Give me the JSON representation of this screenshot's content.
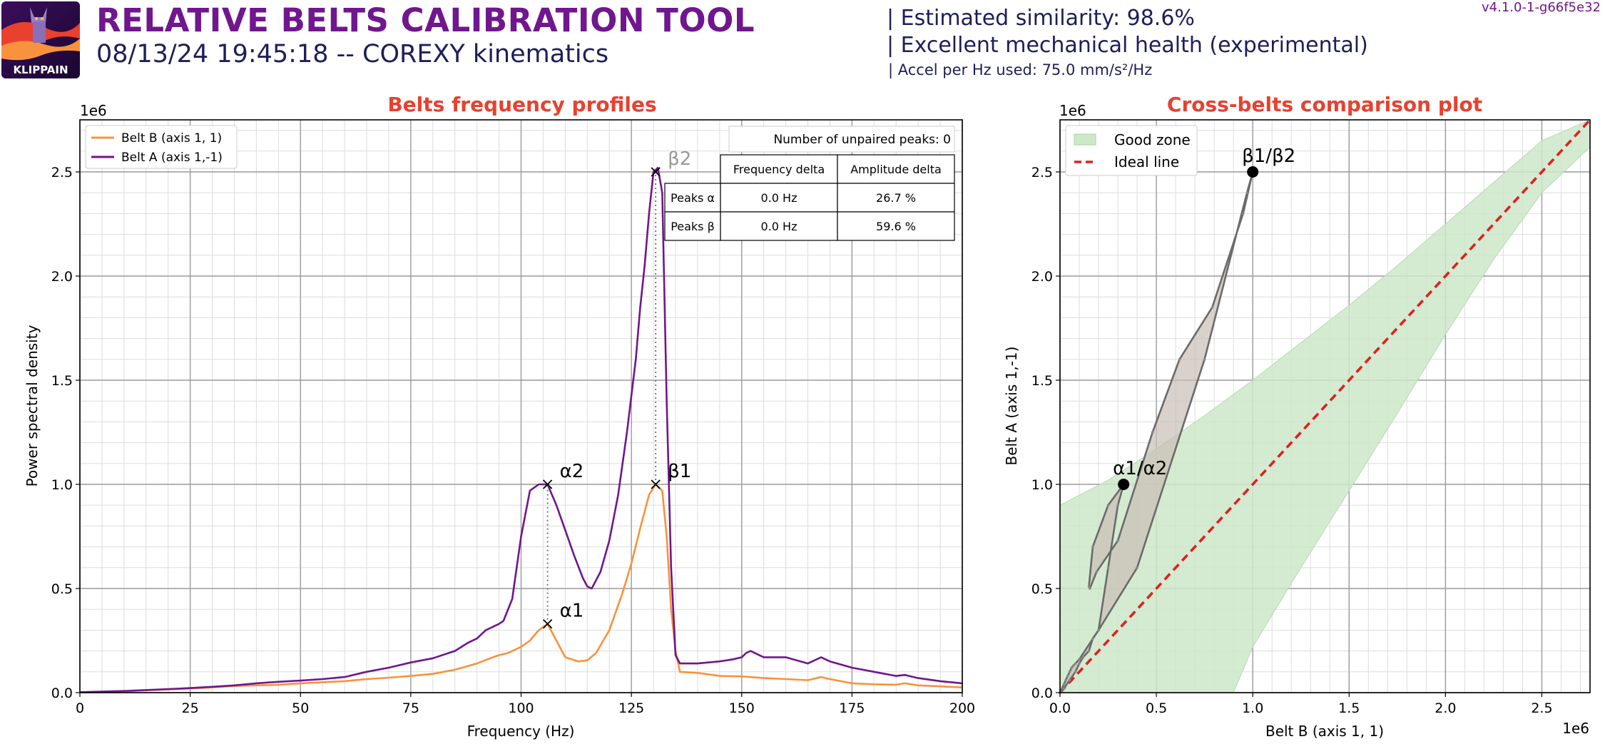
{
  "header": {
    "title": "RELATIVE BELTS CALIBRATION TOOL",
    "subtitle": "08/13/24 19:45:18 -- COREXY kinematics",
    "similarity": "| Estimated similarity: 98.6%",
    "health": "| Excellent mechanical health (experimental)",
    "accel": "| Accel per Hz used: 75.0 mm/s²/Hz",
    "version": "v4.1.0-1-g66f5e32",
    "logo_text": "KLIPPAIN"
  },
  "colors": {
    "belt_a": "#70168e",
    "belt_b": "#f8923c",
    "title_red": "#e8412e",
    "ideal_line": "#e02020",
    "good_zone": "#cce8c9",
    "comparison_line": "#6b6b6b"
  },
  "chart_data": [
    {
      "type": "line",
      "title": "Belts frequency profiles",
      "xlabel": "Frequency (Hz)",
      "ylabel": "Power spectral density",
      "y_scale_label": "1e6",
      "xlim": [
        0,
        200
      ],
      "ylim": [
        0,
        2.75
      ],
      "xticks": [
        0,
        25,
        50,
        75,
        100,
        125,
        150,
        175,
        200
      ],
      "yticks": [
        0.0,
        0.5,
        1.0,
        1.5,
        2.0,
        2.5
      ],
      "grid": true,
      "legend_position": "top-left",
      "series": [
        {
          "name": "Belt B (axis 1, 1)",
          "color": "#f8923c",
          "x": [
            0,
            10,
            20,
            25,
            30,
            35,
            40,
            45,
            50,
            55,
            60,
            65,
            70,
            75,
            80,
            85,
            90,
            93,
            95,
            97,
            100,
            102,
            104,
            106,
            108,
            110,
            113,
            115,
            117,
            120,
            123,
            125,
            127,
            129,
            130.5,
            132,
            133,
            134,
            135,
            136,
            140,
            145,
            150,
            155,
            160,
            165,
            168,
            170,
            175,
            180,
            185,
            187,
            190,
            195,
            200
          ],
          "y": [
            0.002,
            0.006,
            0.015,
            0.02,
            0.025,
            0.032,
            0.035,
            0.038,
            0.045,
            0.05,
            0.055,
            0.065,
            0.072,
            0.08,
            0.09,
            0.11,
            0.14,
            0.165,
            0.18,
            0.19,
            0.22,
            0.25,
            0.3,
            0.33,
            0.25,
            0.17,
            0.15,
            0.155,
            0.19,
            0.3,
            0.48,
            0.62,
            0.79,
            0.95,
            1.0,
            0.97,
            0.75,
            0.4,
            0.2,
            0.1,
            0.095,
            0.08,
            0.078,
            0.07,
            0.065,
            0.06,
            0.075,
            0.065,
            0.045,
            0.04,
            0.038,
            0.045,
            0.035,
            0.03,
            0.025
          ]
        },
        {
          "name": "Belt A (axis 1,-1)",
          "color": "#70168e",
          "x": [
            0,
            10,
            20,
            25,
            30,
            35,
            40,
            45,
            50,
            55,
            60,
            65,
            70,
            75,
            80,
            85,
            88,
            90,
            92,
            93,
            94,
            95,
            96,
            98,
            100,
            102,
            104,
            106,
            107,
            108,
            110,
            112,
            114,
            115,
            116,
            118,
            120,
            122,
            124,
            126,
            127,
            128,
            129,
            130,
            131,
            132,
            133,
            134,
            135,
            136,
            140,
            145,
            148,
            150,
            151,
            152,
            155,
            160,
            165,
            168,
            170,
            175,
            180,
            185,
            187,
            190,
            195,
            200
          ],
          "y": [
            0.002,
            0.008,
            0.017,
            0.022,
            0.028,
            0.035,
            0.045,
            0.052,
            0.058,
            0.065,
            0.075,
            0.1,
            0.12,
            0.145,
            0.165,
            0.2,
            0.24,
            0.26,
            0.3,
            0.31,
            0.32,
            0.33,
            0.345,
            0.45,
            0.75,
            0.97,
            1.0,
            1.0,
            0.95,
            0.9,
            0.78,
            0.66,
            0.55,
            0.51,
            0.5,
            0.58,
            0.73,
            0.95,
            1.25,
            1.6,
            1.85,
            2.05,
            2.3,
            2.5,
            2.52,
            2.4,
            1.4,
            0.6,
            0.18,
            0.14,
            0.14,
            0.15,
            0.16,
            0.17,
            0.19,
            0.2,
            0.17,
            0.17,
            0.14,
            0.17,
            0.15,
            0.12,
            0.1,
            0.08,
            0.085,
            0.07,
            0.055,
            0.045
          ]
        }
      ],
      "peaks": [
        {
          "label": "α1",
          "x": 106.0,
          "y": 0.33,
          "color": "#000000"
        },
        {
          "label": "α2",
          "x": 106.0,
          "y": 1.0,
          "color": "#000000"
        },
        {
          "label": "β1",
          "x": 130.5,
          "y": 1.0,
          "color": "#000000"
        },
        {
          "label": "β2",
          "x": 130.5,
          "y": 2.5,
          "color": "#999999"
        }
      ],
      "table": {
        "title": "Number of unpaired peaks: 0",
        "columns": [
          "",
          "Frequency delta",
          "Amplitude delta"
        ],
        "rows": [
          [
            "Peaks α",
            "0.0 Hz",
            "26.7 %"
          ],
          [
            "Peaks β",
            "0.0 Hz",
            "59.6 %"
          ]
        ]
      }
    },
    {
      "type": "line",
      "title": "Cross-belts comparison plot",
      "xlabel": "Belt B (axis 1, 1)",
      "ylabel": "Belt A (axis 1,-1)",
      "x_scale_label": "1e6",
      "y_scale_label": "1e6",
      "xlim": [
        0,
        2.75
      ],
      "ylim": [
        0,
        2.75
      ],
      "xticks": [
        0.0,
        0.5,
        1.0,
        1.5,
        2.0,
        2.5
      ],
      "yticks": [
        0.0,
        0.5,
        1.0,
        1.5,
        2.0,
        2.5
      ],
      "grid": true,
      "legend_position": "top-left",
      "legend": [
        "Good zone",
        "Ideal line"
      ],
      "good_zone": {
        "x": [
          0,
          0.25,
          0.5,
          0.75,
          1.0,
          1.25,
          1.5,
          1.75,
          2.0,
          2.25,
          2.5,
          2.75
        ],
        "upper": [
          0.9,
          1.02,
          1.17,
          1.33,
          1.5,
          1.68,
          1.86,
          2.05,
          2.25,
          2.45,
          2.65,
          2.9
        ],
        "lower": [
          0.0,
          0.0,
          0.0,
          0.0,
          0.22,
          0.6,
          0.97,
          1.34,
          1.72,
          2.08,
          2.4,
          2.62
        ],
        "lower_start_x": 0.9
      },
      "ideal_line": {
        "x": [
          0,
          2.75
        ],
        "y": [
          0,
          2.75
        ]
      },
      "comparison_curve": {
        "x": [
          0,
          0.02,
          0.05,
          0.08,
          0.1,
          0.12,
          0.15,
          0.17,
          0.2,
          0.25,
          0.3,
          0.33,
          0.25,
          0.17,
          0.15,
          0.155,
          0.19,
          0.3,
          0.48,
          0.62,
          0.79,
          0.95,
          1.0,
          0.97,
          0.75,
          0.4,
          0.2,
          0.1,
          0.08,
          0.07,
          0.06,
          0.05,
          0.04,
          0.03,
          0.02,
          0
        ],
        "y": [
          0,
          0.02,
          0.06,
          0.1,
          0.14,
          0.17,
          0.2,
          0.26,
          0.3,
          0.6,
          0.9,
          1.0,
          0.9,
          0.7,
          0.51,
          0.5,
          0.58,
          0.73,
          1.25,
          1.6,
          1.85,
          2.3,
          2.5,
          2.4,
          1.6,
          0.6,
          0.3,
          0.16,
          0.14,
          0.13,
          0.12,
          0.1,
          0.08,
          0.06,
          0.04,
          0
        ]
      },
      "points": [
        {
          "label": "α1/α2",
          "x": 0.33,
          "y": 1.0
        },
        {
          "label": "β1/β2",
          "x": 1.0,
          "y": 2.5
        }
      ]
    }
  ]
}
